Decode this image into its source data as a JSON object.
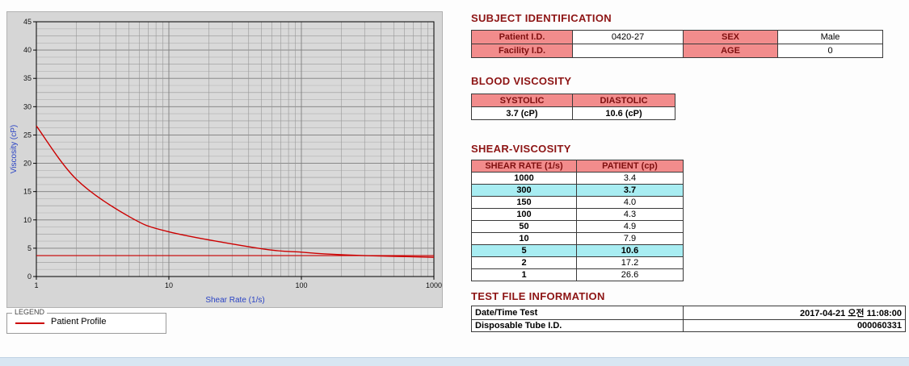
{
  "legend": {
    "title": "LEGEND",
    "item": "Patient Profile"
  },
  "chart_data": {
    "type": "line",
    "xlabel": "Shear Rate (1/s)",
    "ylabel": "Viscosity (cP)",
    "x_scale": "log",
    "xlim": [
      1,
      1000
    ],
    "ylim": [
      0,
      45
    ],
    "x_ticks": [
      1,
      10,
      100,
      1000
    ],
    "y_ticks": [
      0,
      5,
      10,
      15,
      20,
      25,
      30,
      35,
      40,
      45
    ],
    "grid": true,
    "legend_position": "bottom-left",
    "series": [
      {
        "name": "Patient Profile",
        "x": [
          1,
          2,
          5,
          10,
          50,
          100,
          150,
          300,
          1000
        ],
        "y": [
          26.6,
          17.2,
          10.6,
          7.9,
          4.9,
          4.3,
          4.0,
          3.7,
          3.4
        ],
        "color": "#cc0000"
      }
    ],
    "reference_lines": [
      {
        "y": 3.7,
        "color": "#cc0000"
      }
    ]
  },
  "subject": {
    "title": "SUBJECT IDENTIFICATION",
    "rows": [
      {
        "label1": "Patient I.D.",
        "value1": "0420-27",
        "label2": "SEX",
        "value2": "Male"
      },
      {
        "label1": "Facility I.D.",
        "value1": "",
        "label2": "AGE",
        "value2": "0"
      }
    ]
  },
  "blood": {
    "title": "BLOOD VISCOSITY",
    "headers": [
      "SYSTOLIC",
      "DIASTOLIC"
    ],
    "values": [
      "3.7 (cP)",
      "10.6 (cP)"
    ]
  },
  "shear": {
    "title": "SHEAR-VISCOSITY",
    "headers": [
      "SHEAR RATE (1/s)",
      "PATIENT (cp)"
    ],
    "rows": [
      {
        "rate": "1000",
        "value": "3.4",
        "highlight": false
      },
      {
        "rate": "300",
        "value": "3.7",
        "highlight": true
      },
      {
        "rate": "150",
        "value": "4.0",
        "highlight": false
      },
      {
        "rate": "100",
        "value": "4.3",
        "highlight": false
      },
      {
        "rate": "50",
        "value": "4.9",
        "highlight": false
      },
      {
        "rate": "10",
        "value": "7.9",
        "highlight": false
      },
      {
        "rate": "5",
        "value": "10.6",
        "highlight": true
      },
      {
        "rate": "2",
        "value": "17.2",
        "highlight": false
      },
      {
        "rate": "1",
        "value": "26.6",
        "highlight": false
      }
    ]
  },
  "test_file": {
    "title": "TEST FILE INFORMATION",
    "rows": [
      {
        "label": "Date/Time Test",
        "value": "2017-04-21 오전 11:08:00"
      },
      {
        "label": "Disposable Tube I.D.",
        "value": "000060331"
      }
    ]
  },
  "colors": {
    "header_pink": "#f28c8c",
    "header_text": "#7e0f0f",
    "highlight_cyan": "#a8edf2",
    "section_title": "#8d1414",
    "curve_red": "#cc0000",
    "axis_label_blue": "#2b44c4"
  }
}
